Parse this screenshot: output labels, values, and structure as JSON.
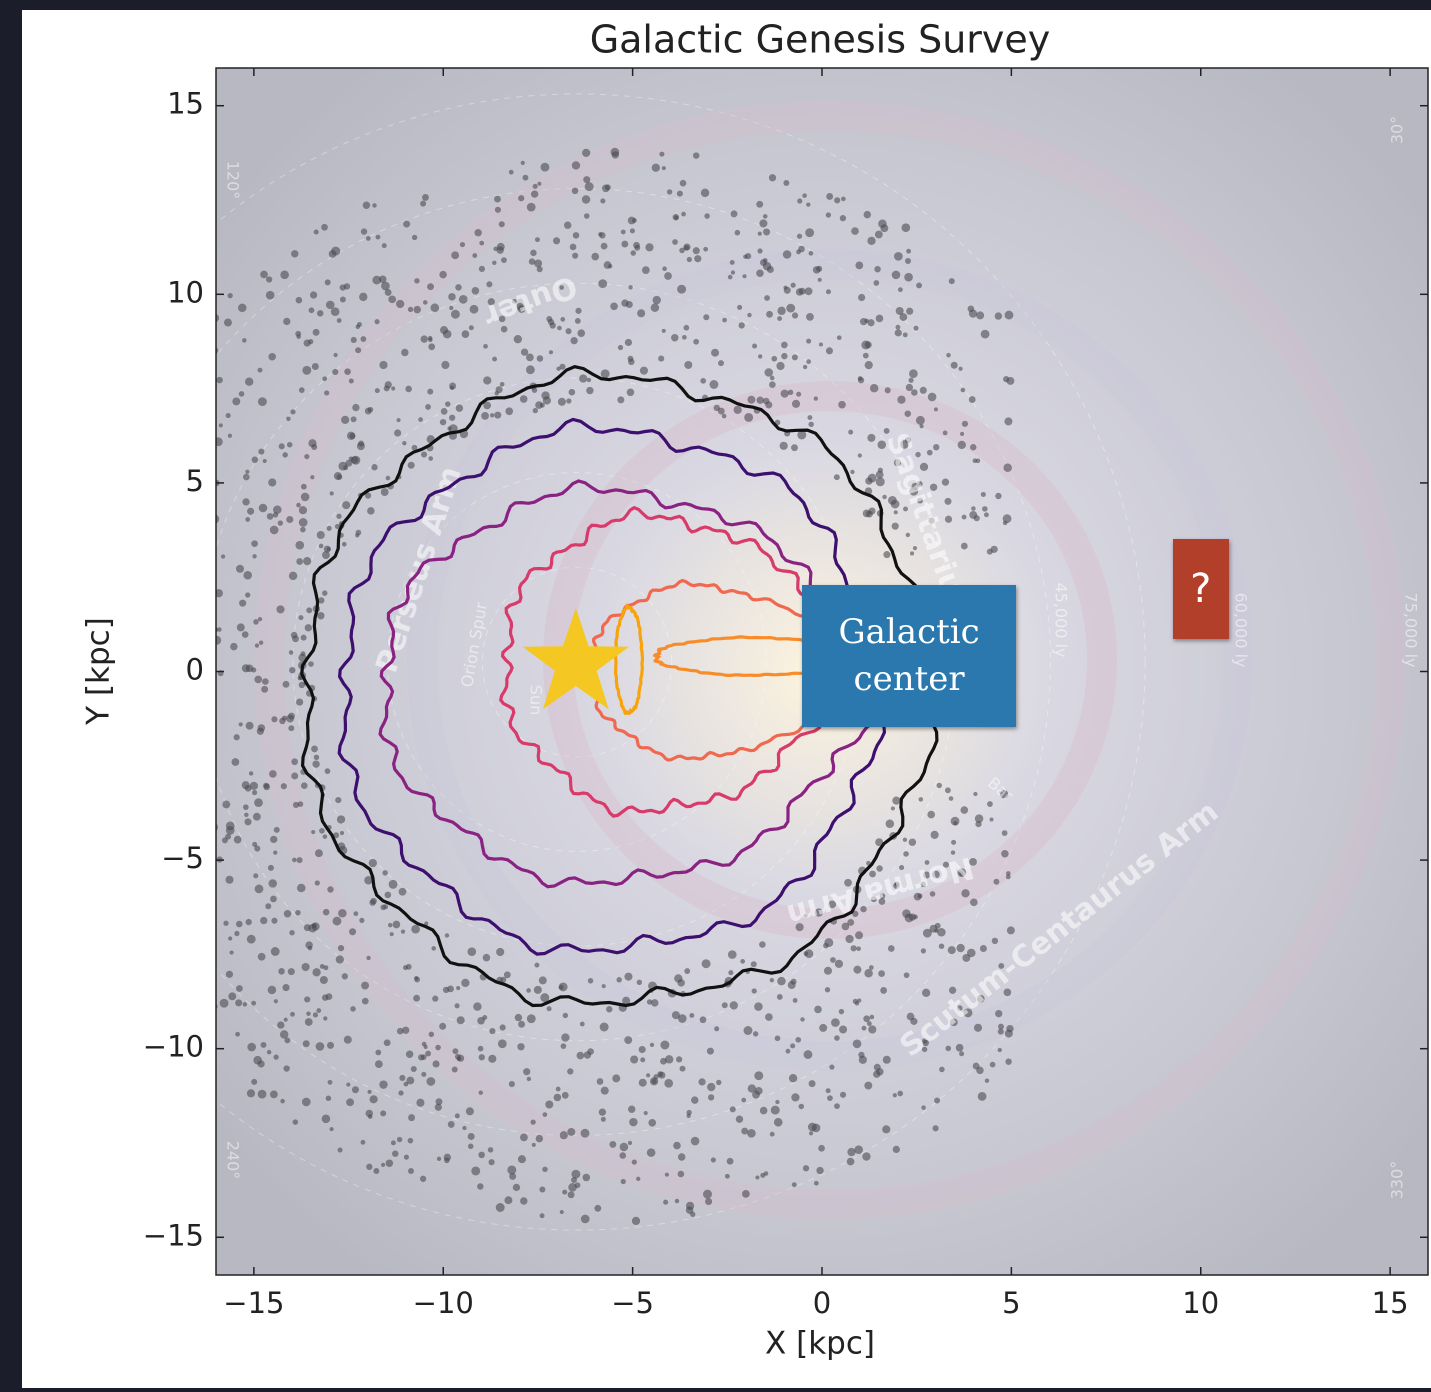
{
  "chart_data": {
    "type": "scatter",
    "title": "Galactic Genesis Survey",
    "xlabel": "X [kpc]",
    "ylabel": "Y [kpc]",
    "xlim": [
      -16,
      16
    ],
    "ylim": [
      -16,
      16
    ],
    "xticks": [
      {
        "value": -15,
        "label": "−15"
      },
      {
        "value": -10,
        "label": "−10"
      },
      {
        "value": -5,
        "label": "−5"
      },
      0,
      5,
      10,
      15
    ],
    "yticks": [
      {
        "value": -15,
        "label": "−15"
      },
      {
        "value": -10,
        "label": "−10"
      },
      {
        "value": -5,
        "label": "−5"
      },
      0,
      5,
      10,
      15
    ],
    "grid": false,
    "star": {
      "x": -6.5,
      "y": 0.2,
      "color": "#f5c722"
    },
    "annotations": [
      {
        "text": "Galactic center",
        "x": 2.3,
        "y": 0.4,
        "color": "#2a78ae"
      },
      {
        "text": "?",
        "x": 10.0,
        "y": 2.2,
        "color": "#b23f2a"
      }
    ],
    "background_labels": [
      "Scutum-Centaurus Arm",
      "Norma Arm",
      "Perseus Arm",
      "Outer",
      "Orion Spur",
      "Sun",
      "Sagittarius Arm",
      "Bar",
      "45,000 ly",
      "60,000 ly",
      "75,000 ly",
      "30°",
      "120°",
      "240°",
      "330°"
    ]
  }
}
